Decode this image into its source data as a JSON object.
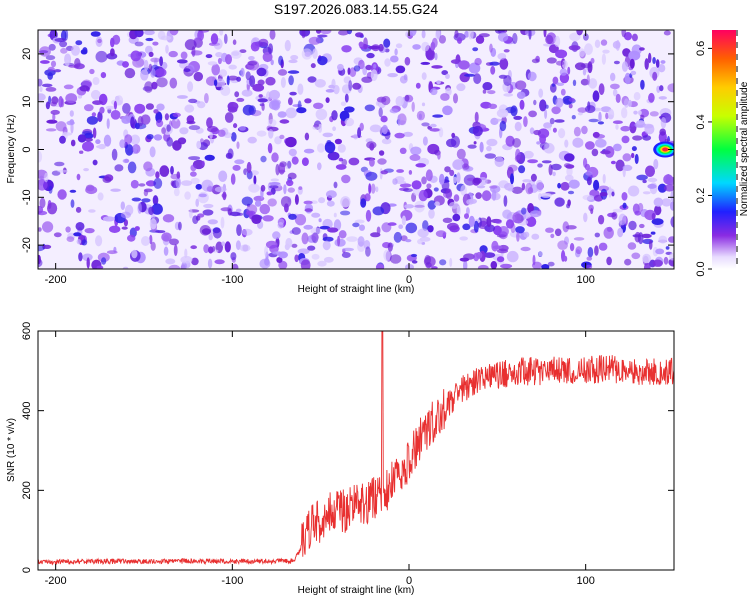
{
  "title": "S197.2026.083.14.55.G24",
  "chart_data": [
    {
      "type": "heatmap",
      "title": "S197.2026.083.14.55.G24",
      "xlabel": "Height of straight line (km)",
      "ylabel": "Frequency (Hz)",
      "xlim": [
        -210,
        150
      ],
      "ylim": [
        -25,
        25
      ],
      "xticks": [
        -200,
        -100,
        0,
        100
      ],
      "yticks": [
        -20,
        -10,
        0,
        10,
        20
      ],
      "colorbar": {
        "label": "Normalized spectral amplitude",
        "range": [
          0,
          0.65
        ],
        "ticks": [
          0.0,
          0.2,
          0.4,
          0.6
        ]
      },
      "peak": {
        "x": 145,
        "y": 0,
        "value": 0.65
      }
    },
    {
      "type": "line",
      "xlabel": "Height of straight line (km)",
      "ylabel": "SNR (10 * v/v)",
      "xlim": [
        -210,
        150
      ],
      "ylim": [
        0,
        600
      ],
      "xticks": [
        -200,
        -100,
        0,
        100
      ],
      "yticks": [
        0,
        200,
        400,
        600
      ],
      "series": [
        {
          "name": "SNR",
          "color": "#e83030",
          "x": [
            -210,
            -150,
            -100,
            -65,
            -55,
            -45,
            -35,
            -25,
            -15,
            -5,
            5,
            15,
            25,
            35,
            50,
            70,
            90,
            110,
            130,
            150
          ],
          "y": [
            20,
            22,
            22,
            22,
            110,
            140,
            150,
            170,
            190,
            240,
            320,
            380,
            430,
            470,
            490,
            500,
            500,
            505,
            500,
            495
          ]
        }
      ],
      "annotations": [
        {
          "x": -15,
          "y": 600,
          "text": ""
        }
      ]
    }
  ]
}
